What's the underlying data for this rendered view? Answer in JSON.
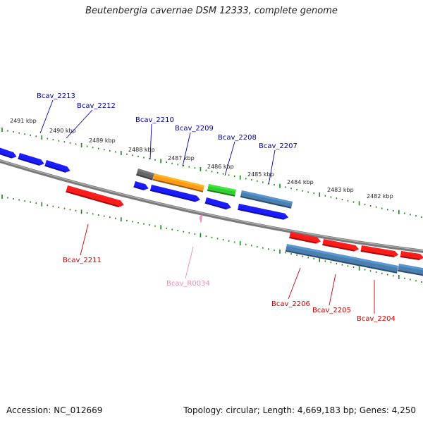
{
  "title": "Beutenbergia cavernae DSM 12333, complete genome",
  "footer": {
    "accession": "Accession: NC_012669",
    "summary": "Topology: circular; Length: 4,669,183 bp; Genes: 4,250"
  },
  "colors": {
    "blue_gene": "#1a1aff",
    "red_gene": "#ff1a1a",
    "gray_gene": "#666666",
    "orange_gene": "#ff9a1a",
    "green_gene": "#33cc33",
    "steel_gene": "#4a7fb0",
    "label_blue": "#0000aa",
    "label_red": "#cc0000",
    "label_pink": "#e88ab8",
    "tick_green": "#138a13",
    "backbone": "#808080"
  },
  "scale_labels": [
    "2491 kbp",
    "2490 kbp",
    "2489 kbp",
    "2488 kbp",
    "2487 kbp",
    "2486 kbp",
    "2485 kbp",
    "2484 kbp",
    "2483 kbp",
    "2482 kbp"
  ],
  "gene_labels": [
    {
      "text": "Bcav_2213",
      "color": "label_blue"
    },
    {
      "text": "Bcav_2212",
      "color": "label_blue"
    },
    {
      "text": "Bcav_2210",
      "color": "label_blue"
    },
    {
      "text": "Bcav_2209",
      "color": "label_blue"
    },
    {
      "text": "Bcav_2208",
      "color": "label_blue"
    },
    {
      "text": "Bcav_2207",
      "color": "label_blue"
    },
    {
      "text": "Bcav_2211",
      "color": "label_red"
    },
    {
      "text": "Bcav_R0034",
      "color": "label_pink"
    },
    {
      "text": "Bcav_2206",
      "color": "label_red"
    },
    {
      "text": "Bcav_2205",
      "color": "label_red"
    },
    {
      "text": "Bcav_2204",
      "color": "label_red"
    }
  ]
}
